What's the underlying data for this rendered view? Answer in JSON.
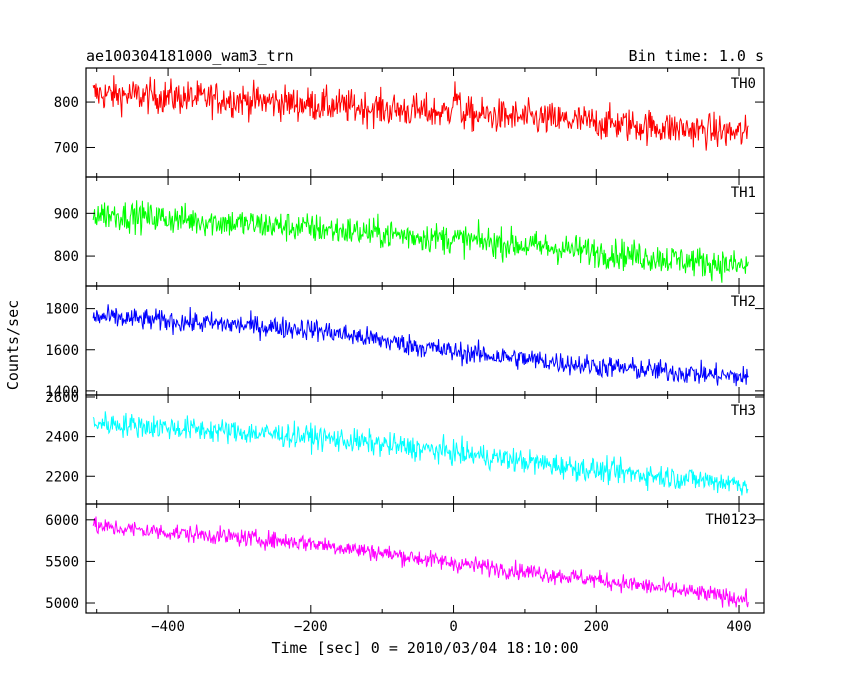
{
  "chart_data": {
    "type": "line",
    "title": "ae100304181000_wam3_trn",
    "bin_time_label": "Bin time: 1.0 s",
    "xlabel": "Time [sec] 0 = 2010/03/04 18:10:00",
    "ylabel": "Counts/sec",
    "xlim": [
      -515,
      435
    ],
    "x_ticks": [
      -400,
      -200,
      0,
      200,
      400
    ],
    "x_tick_labels": [
      "−400",
      "−200",
      "0",
      "200",
      "400"
    ],
    "x_range_data": [
      -505,
      413
    ],
    "panels": [
      {
        "name": "TH0",
        "color": "#ff0000",
        "ylim": [
          635,
          875
        ],
        "y_ticks": [
          700,
          800
        ],
        "y_tick_labels": [
          "700",
          "800"
        ],
        "trend": [
          [
            -505,
            818
          ],
          [
            -300,
            805
          ],
          [
            0,
            775
          ],
          [
            200,
            755
          ],
          [
            413,
            730
          ]
        ],
        "noise_amplitude": 34,
        "features": [
          {
            "x": 2,
            "height": 40,
            "width": 6
          }
        ]
      },
      {
        "name": "TH1",
        "color": "#00ff00",
        "ylim": [
          730,
          985
        ],
        "y_ticks": [
          800,
          900
        ],
        "y_tick_labels": [
          "800",
          "900"
        ],
        "trend": [
          [
            -505,
            900
          ],
          [
            -200,
            865
          ],
          [
            0,
            840
          ],
          [
            200,
            810
          ],
          [
            413,
            775
          ]
        ],
        "noise_amplitude": 32,
        "features": []
      },
      {
        "name": "TH2",
        "color": "#0000ff",
        "ylim": [
          1380,
          1910
        ],
        "y_ticks": [
          1400,
          1600,
          1800
        ],
        "y_tick_labels": [
          "1400",
          "1600",
          "1800"
        ],
        "trend": [
          [
            -505,
            1760
          ],
          [
            -200,
            1700
          ],
          [
            0,
            1590
          ],
          [
            200,
            1520
          ],
          [
            413,
            1465
          ]
        ],
        "noise_amplitude": 48,
        "features": []
      },
      {
        "name": "TH3",
        "color": "#00ffff",
        "ylim": [
          2060,
          2610
        ],
        "y_ticks": [
          2200,
          2400,
          2600
        ],
        "y_tick_labels": [
          "2200",
          "2400",
          "2600"
        ],
        "trend": [
          [
            -505,
            2470
          ],
          [
            -200,
            2400
          ],
          [
            0,
            2320
          ],
          [
            200,
            2230
          ],
          [
            413,
            2160
          ]
        ],
        "noise_amplitude": 55,
        "features": []
      },
      {
        "name": "TH0123",
        "color": "#ff00ff",
        "ylim": [
          4880,
          6190
        ],
        "y_ticks": [
          5000,
          5500,
          6000
        ],
        "y_tick_labels": [
          "5000",
          "5500",
          "6000"
        ],
        "trend": [
          [
            -505,
            5920
          ],
          [
            -200,
            5720
          ],
          [
            0,
            5480
          ],
          [
            200,
            5280
          ],
          [
            413,
            5040
          ]
        ],
        "noise_amplitude": 95,
        "features": []
      }
    ]
  }
}
